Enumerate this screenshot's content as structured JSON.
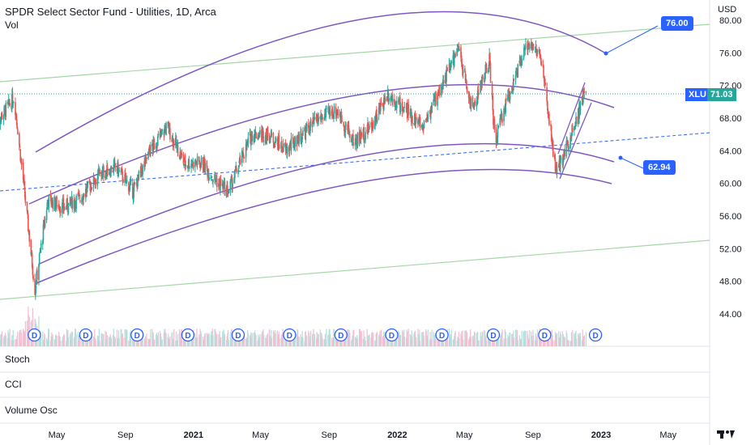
{
  "title": "SPDR Select Sector Fund - Utilities, 1D, Arca",
  "vol_label": "Vol",
  "currency": "USD",
  "symbol_tag": "XLU",
  "last_price_label": "71.03",
  "annotation_high": "76.00",
  "annotation_low": "62.94",
  "panes": [
    "Stoch",
    "CCI",
    "Volume Osc"
  ],
  "dividend_marker": "D",
  "colors": {
    "up": "#26a69a",
    "down": "#ef5350",
    "channel": "#7e57c2",
    "trend_green": "#a5d6a7",
    "dashed": "#2962ff",
    "tag_blue": "#2962ff"
  },
  "chart_data": {
    "type": "candlestick",
    "symbol": "XLU",
    "interval": "1D",
    "exchange": "Arca",
    "y_ticks": [
      "80.00",
      "76.00",
      "72.00",
      "68.00",
      "64.00",
      "60.00",
      "56.00",
      "52.00",
      "48.00",
      "44.00"
    ],
    "ylim": [
      42,
      82
    ],
    "x_ticks": [
      "May",
      "Sep",
      "2021",
      "May",
      "Sep",
      "2022",
      "May",
      "Sep",
      "2023",
      "May"
    ],
    "last_price": 71.03,
    "grid": true,
    "price_path": [
      {
        "date": "2020-01-15",
        "close": 67.5
      },
      {
        "date": "2020-02-15",
        "close": 70.5
      },
      {
        "date": "2020-03-23",
        "close": 47.0
      },
      {
        "date": "2020-04-15",
        "close": 58.0
      },
      {
        "date": "2020-05-15",
        "close": 57.0
      },
      {
        "date": "2020-06-15",
        "close": 58.5
      },
      {
        "date": "2020-07-15",
        "close": 61.0
      },
      {
        "date": "2020-08-15",
        "close": 62.0
      },
      {
        "date": "2020-09-15",
        "close": 59.0
      },
      {
        "date": "2020-10-15",
        "close": 64.0
      },
      {
        "date": "2020-11-15",
        "close": 67.0
      },
      {
        "date": "2020-12-15",
        "close": 62.5
      },
      {
        "date": "2021-01-15",
        "close": 62.5
      },
      {
        "date": "2021-02-15",
        "close": 60.0
      },
      {
        "date": "2021-03-04",
        "close": 59.0
      },
      {
        "date": "2021-04-15",
        "close": 66.0
      },
      {
        "date": "2021-05-15",
        "close": 66.0
      },
      {
        "date": "2021-06-15",
        "close": 64.0
      },
      {
        "date": "2021-07-15",
        "close": 66.0
      },
      {
        "date": "2021-08-15",
        "close": 68.0
      },
      {
        "date": "2021-09-15",
        "close": 69.0
      },
      {
        "date": "2021-10-15",
        "close": 65.0
      },
      {
        "date": "2021-11-15",
        "close": 67.0
      },
      {
        "date": "2021-12-15",
        "close": 71.0
      },
      {
        "date": "2022-01-15",
        "close": 69.0
      },
      {
        "date": "2022-02-15",
        "close": 67.0
      },
      {
        "date": "2022-03-15",
        "close": 71.0
      },
      {
        "date": "2022-04-20",
        "close": 76.5
      },
      {
        "date": "2022-05-15",
        "close": 69.0
      },
      {
        "date": "2022-06-15",
        "close": 75.0
      },
      {
        "date": "2022-06-25",
        "close": 65.0
      },
      {
        "date": "2022-07-15",
        "close": 70.0
      },
      {
        "date": "2022-08-25",
        "close": 77.5
      },
      {
        "date": "2022-09-15",
        "close": 75.5
      },
      {
        "date": "2022-10-13",
        "close": 61.0
      },
      {
        "date": "2022-11-15",
        "close": 67.5
      },
      {
        "date": "2022-12-05",
        "close": 71.5
      }
    ],
    "volume_dividend_dates": [
      "2020-03",
      "2020-06",
      "2020-09",
      "2020-12",
      "2021-03",
      "2021-06",
      "2021-09",
      "2021-12",
      "2022-03",
      "2022-06",
      "2022-09",
      "2022-12"
    ]
  }
}
